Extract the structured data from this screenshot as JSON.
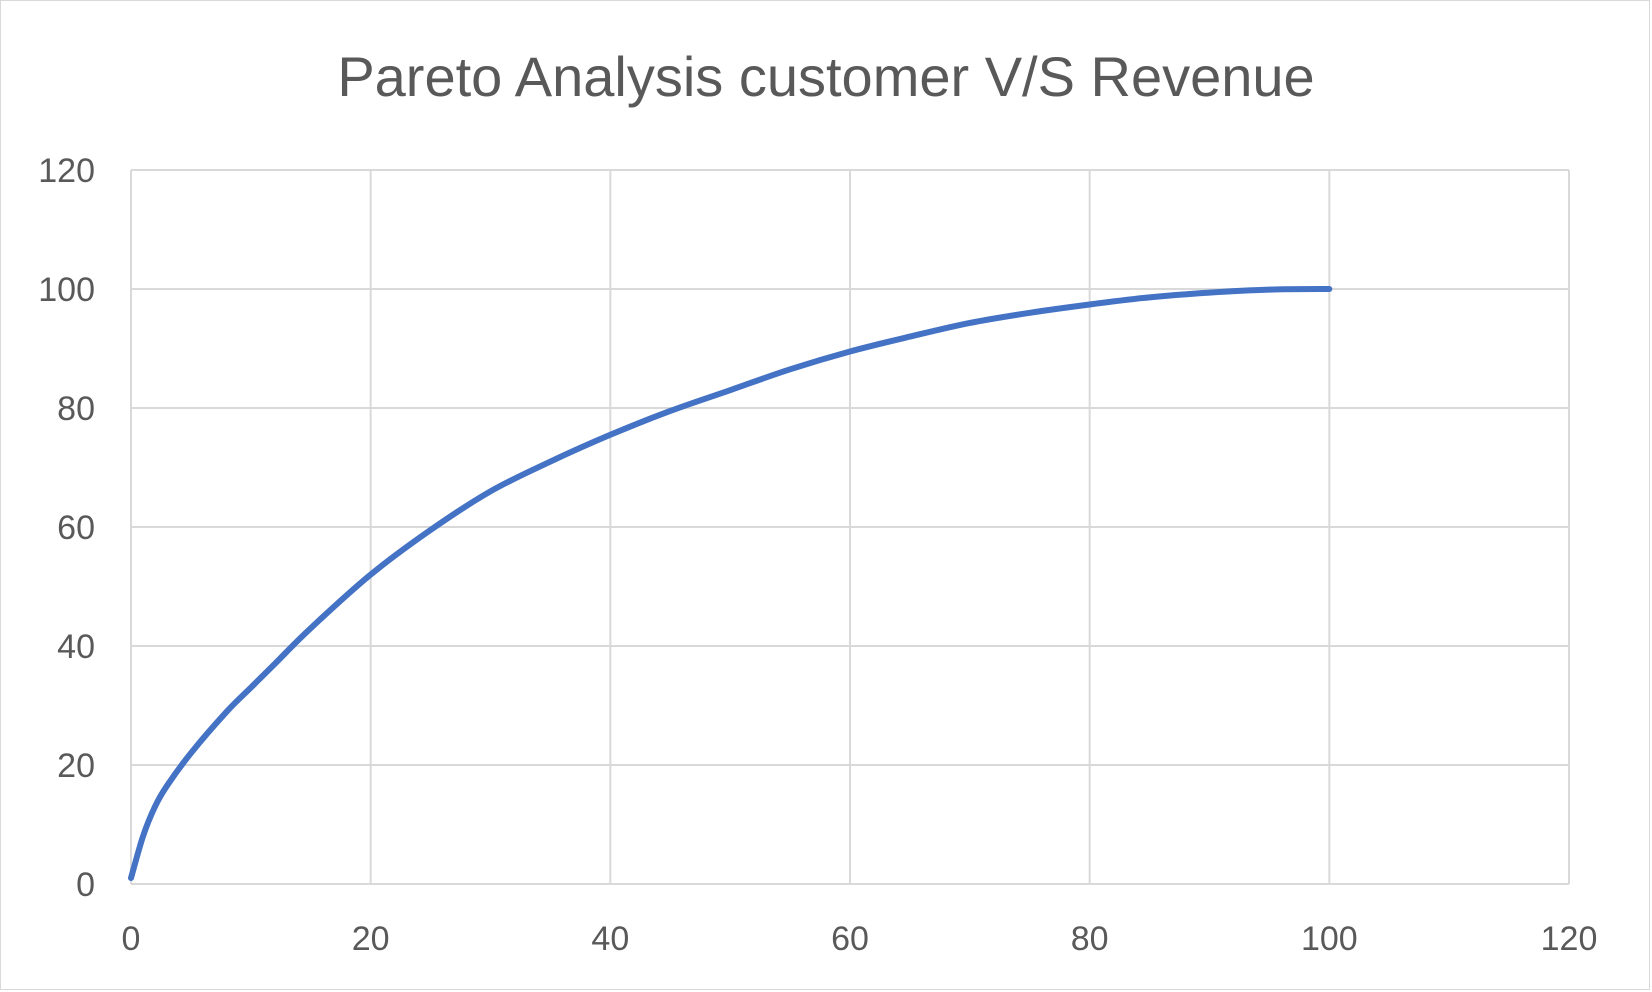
{
  "chart_data": {
    "type": "line",
    "title": "Pareto Analysis customer V/S Revenue",
    "xlabel": "",
    "ylabel": "",
    "xlim": [
      0,
      120
    ],
    "ylim": [
      0,
      120
    ],
    "x_ticks": [
      0,
      20,
      40,
      60,
      80,
      100,
      120
    ],
    "y_ticks": [
      0,
      20,
      40,
      60,
      80,
      100,
      120
    ],
    "grid": true,
    "legend": "none",
    "series": [
      {
        "color": "#4472c4",
        "x": [
          0,
          1,
          2,
          3,
          5,
          8,
          10,
          12,
          15,
          20,
          25,
          30,
          35,
          40,
          45,
          50,
          55,
          60,
          65,
          70,
          75,
          80,
          85,
          90,
          95,
          100
        ],
        "y": [
          1,
          8,
          13,
          16.5,
          22,
          29,
          33,
          37,
          43,
          52,
          59.5,
          66,
          71,
          75.5,
          79.5,
          83,
          86.5,
          89.5,
          92,
          94.3,
          96,
          97.4,
          98.6,
          99.4,
          99.9,
          100
        ]
      }
    ]
  }
}
